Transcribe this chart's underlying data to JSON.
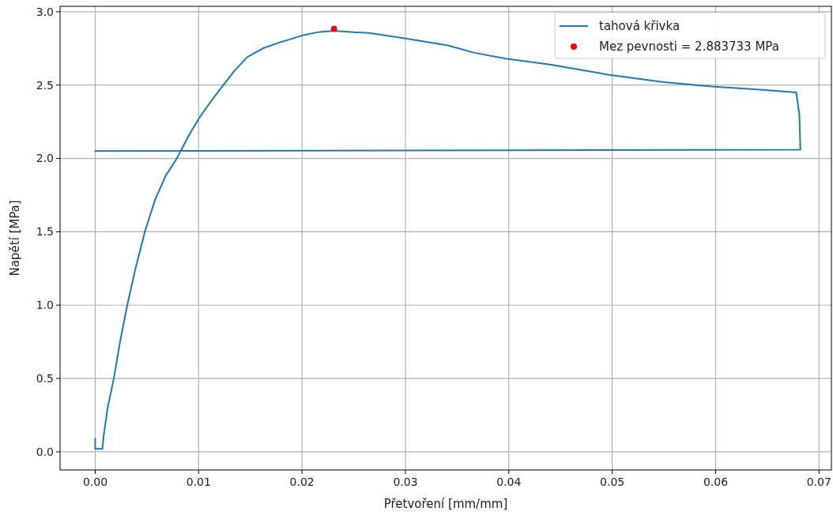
{
  "chart_data": {
    "type": "line",
    "xlabel": "Přetvoření [mm/mm]",
    "ylabel": "Napětí [MPa]",
    "series": [
      {
        "name": "tahová křivka",
        "color": "#1f77b4",
        "x": [
          0,
          0,
          0.0007,
          0.0008,
          0.0012,
          0.0018,
          0.0024,
          0.0031,
          0.0039,
          0.0048,
          0.0058,
          0.0068,
          0.0079,
          0.009,
          0.01,
          0.0112,
          0.0124,
          0.0135,
          0.0147,
          0.0162,
          0.0178,
          0.0201,
          0.0215,
          0.0231,
          0.025,
          0.0265,
          0.0298,
          0.0341,
          0.0367,
          0.0397,
          0.044,
          0.0497,
          0.055,
          0.0596,
          0.064,
          0.0678,
          0.0681,
          0.0682,
          0
        ],
        "values": [
          0.09,
          0.02,
          0.02,
          0.1,
          0.3,
          0.5,
          0.75,
          1.0,
          1.25,
          1.5,
          1.72,
          1.88,
          2.0,
          2.15,
          2.27,
          2.39,
          2.5,
          2.6,
          2.69,
          2.75,
          2.79,
          2.84,
          2.86,
          2.87,
          2.86,
          2.855,
          2.82,
          2.77,
          2.72,
          2.68,
          2.64,
          2.57,
          2.52,
          2.49,
          2.47,
          2.45,
          2.3,
          2.06,
          2.05
        ]
      },
      {
        "name": "Mez pevnosti = 2.883733 MPa",
        "type": "scatter",
        "marker": "circle",
        "color": "#ff0000",
        "x": [
          0.0231
        ],
        "values": [
          2.883733
        ]
      }
    ],
    "xlim": [
      -0.0034,
      0.0712
    ],
    "ylim": [
      -0.124,
      3.037
    ],
    "xticks": [
      {
        "value": 0,
        "label": "0.00"
      },
      {
        "value": 0.01,
        "label": "0.01"
      },
      {
        "value": 0.02,
        "label": "0.02"
      },
      {
        "value": 0.03,
        "label": "0.03"
      },
      {
        "value": 0.04,
        "label": "0.04"
      },
      {
        "value": 0.05,
        "label": "0.05"
      },
      {
        "value": 0.06,
        "label": "0.06"
      },
      {
        "value": 0.07,
        "label": "0.07"
      }
    ],
    "yticks": [
      {
        "value": 0,
        "label": "0.0"
      },
      {
        "value": 0.5,
        "label": "0.5"
      },
      {
        "value": 1,
        "label": "1.0"
      },
      {
        "value": 1.5,
        "label": "1.5"
      },
      {
        "value": 2,
        "label": "2.0"
      },
      {
        "value": 2.5,
        "label": "2.5"
      },
      {
        "value": 3,
        "label": "3.0"
      }
    ],
    "grid": true,
    "legend": "top right"
  }
}
